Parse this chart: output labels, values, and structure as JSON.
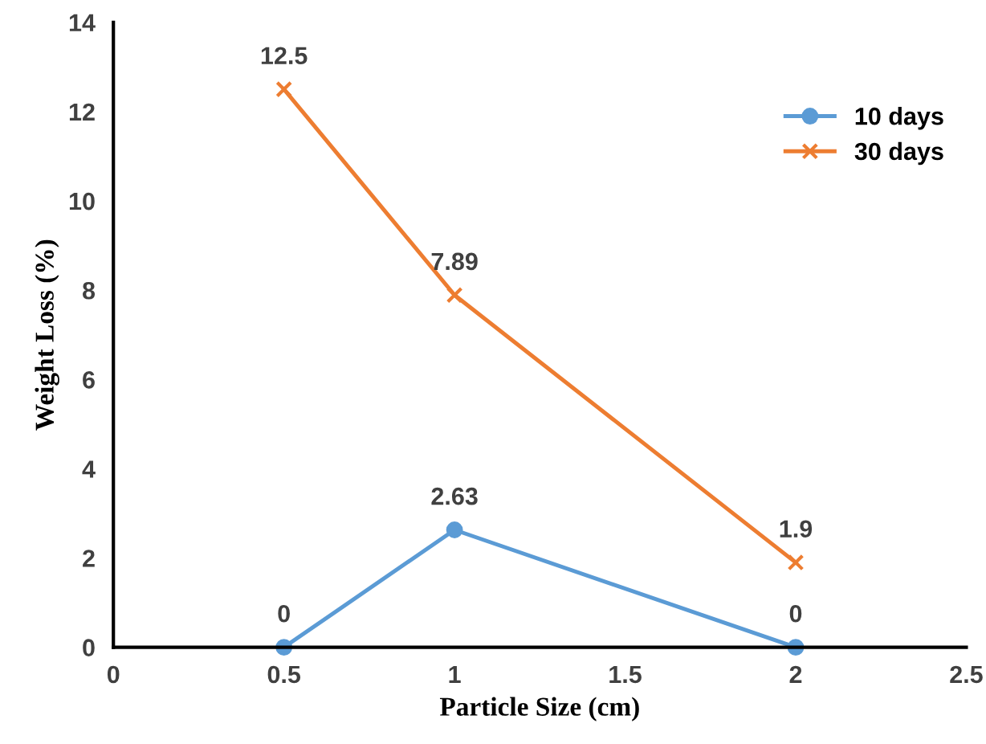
{
  "chart_data": {
    "type": "line",
    "xlabel": "Particle Size (cm)",
    "ylabel": "Weight Loss (%)",
    "x": [
      0.5,
      1,
      2
    ],
    "series": [
      {
        "name": "10 days",
        "color": "#5b9bd5",
        "marker": "circle",
        "values": [
          0,
          2.63,
          0
        ]
      },
      {
        "name": "30 days",
        "color": "#ed7d31",
        "marker": "cross",
        "values": [
          12.5,
          7.89,
          1.9
        ]
      }
    ],
    "xlim": [
      0,
      2.5
    ],
    "xticks": [
      0,
      0.5,
      1,
      1.5,
      2,
      2.5
    ],
    "ylim": [
      0,
      14
    ],
    "yticks": [
      0,
      2,
      4,
      6,
      8,
      10,
      12,
      14
    ],
    "grid": false,
    "legend": "top right",
    "data_labels": true,
    "line_style": "solid"
  }
}
